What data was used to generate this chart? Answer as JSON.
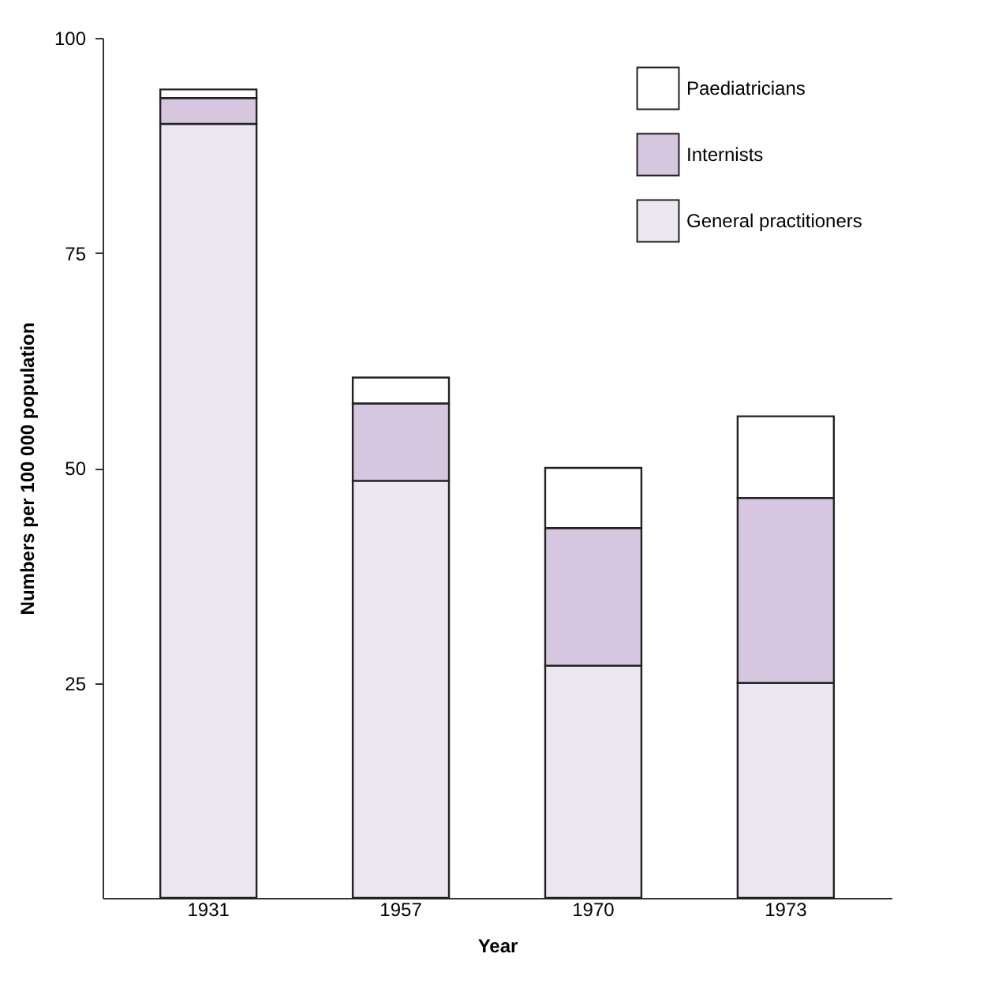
{
  "chart_data": {
    "type": "bar",
    "stacked": true,
    "xlabel": "Year",
    "ylabel": "Numbers per 100 000 population",
    "categories": [
      "1931",
      "1957",
      "1970",
      "1973"
    ],
    "series": [
      {
        "name": "General practitioners",
        "color": "#ece6f0",
        "values": [
          90,
          48.5,
          27,
          25
        ]
      },
      {
        "name": "Internists",
        "color": "#d6c6df",
        "values": [
          3,
          9,
          16,
          21.5
        ]
      },
      {
        "name": "Paediatricians",
        "color": "#ffffff",
        "values": [
          1,
          3,
          7,
          9.5
        ]
      }
    ],
    "ylim": [
      0,
      100
    ],
    "yticks": [
      25,
      50,
      75,
      100
    ],
    "grid": false,
    "legend": "top right"
  }
}
